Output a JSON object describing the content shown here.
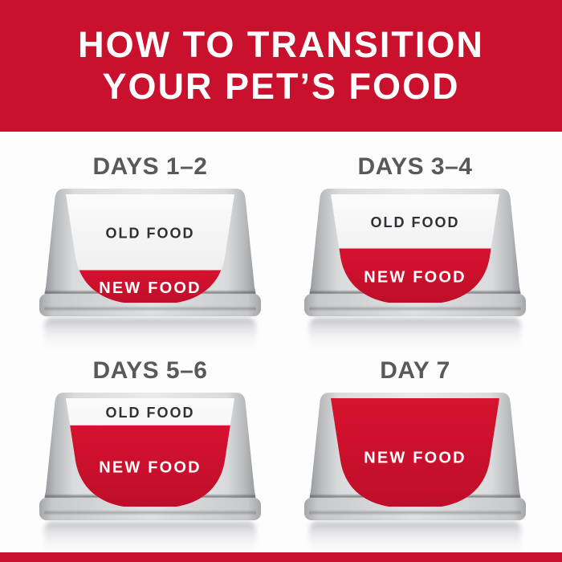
{
  "header": {
    "line1": "HOW TO TRANSITION",
    "line2": "YOUR PET’S FOOD"
  },
  "bowls": [
    {
      "label": "DAYS 1–2",
      "old_food_label": "OLD FOOD",
      "new_food_label": "NEW FOOD",
      "new_food_pct": 30
    },
    {
      "label": "DAYS 3–4",
      "old_food_label": "OLD FOOD",
      "new_food_label": "NEW FOOD",
      "new_food_pct": 50
    },
    {
      "label": "DAYS 5–6",
      "old_food_label": "OLD FOOD",
      "new_food_label": "NEW FOOD",
      "new_food_pct": 75
    },
    {
      "label": "DAY 7",
      "new_food_label": "NEW FOOD",
      "new_food_pct": 100
    }
  ],
  "colors": {
    "brand_red": "#c9112e",
    "food_red": "#d2112e",
    "day_label_gray": "#58595b",
    "old_food_text": "#2f3136",
    "new_food_text": "#ffffff",
    "bowl_gray_edge": "#96989b",
    "bowl_gray_center": "#e9eaeb"
  }
}
